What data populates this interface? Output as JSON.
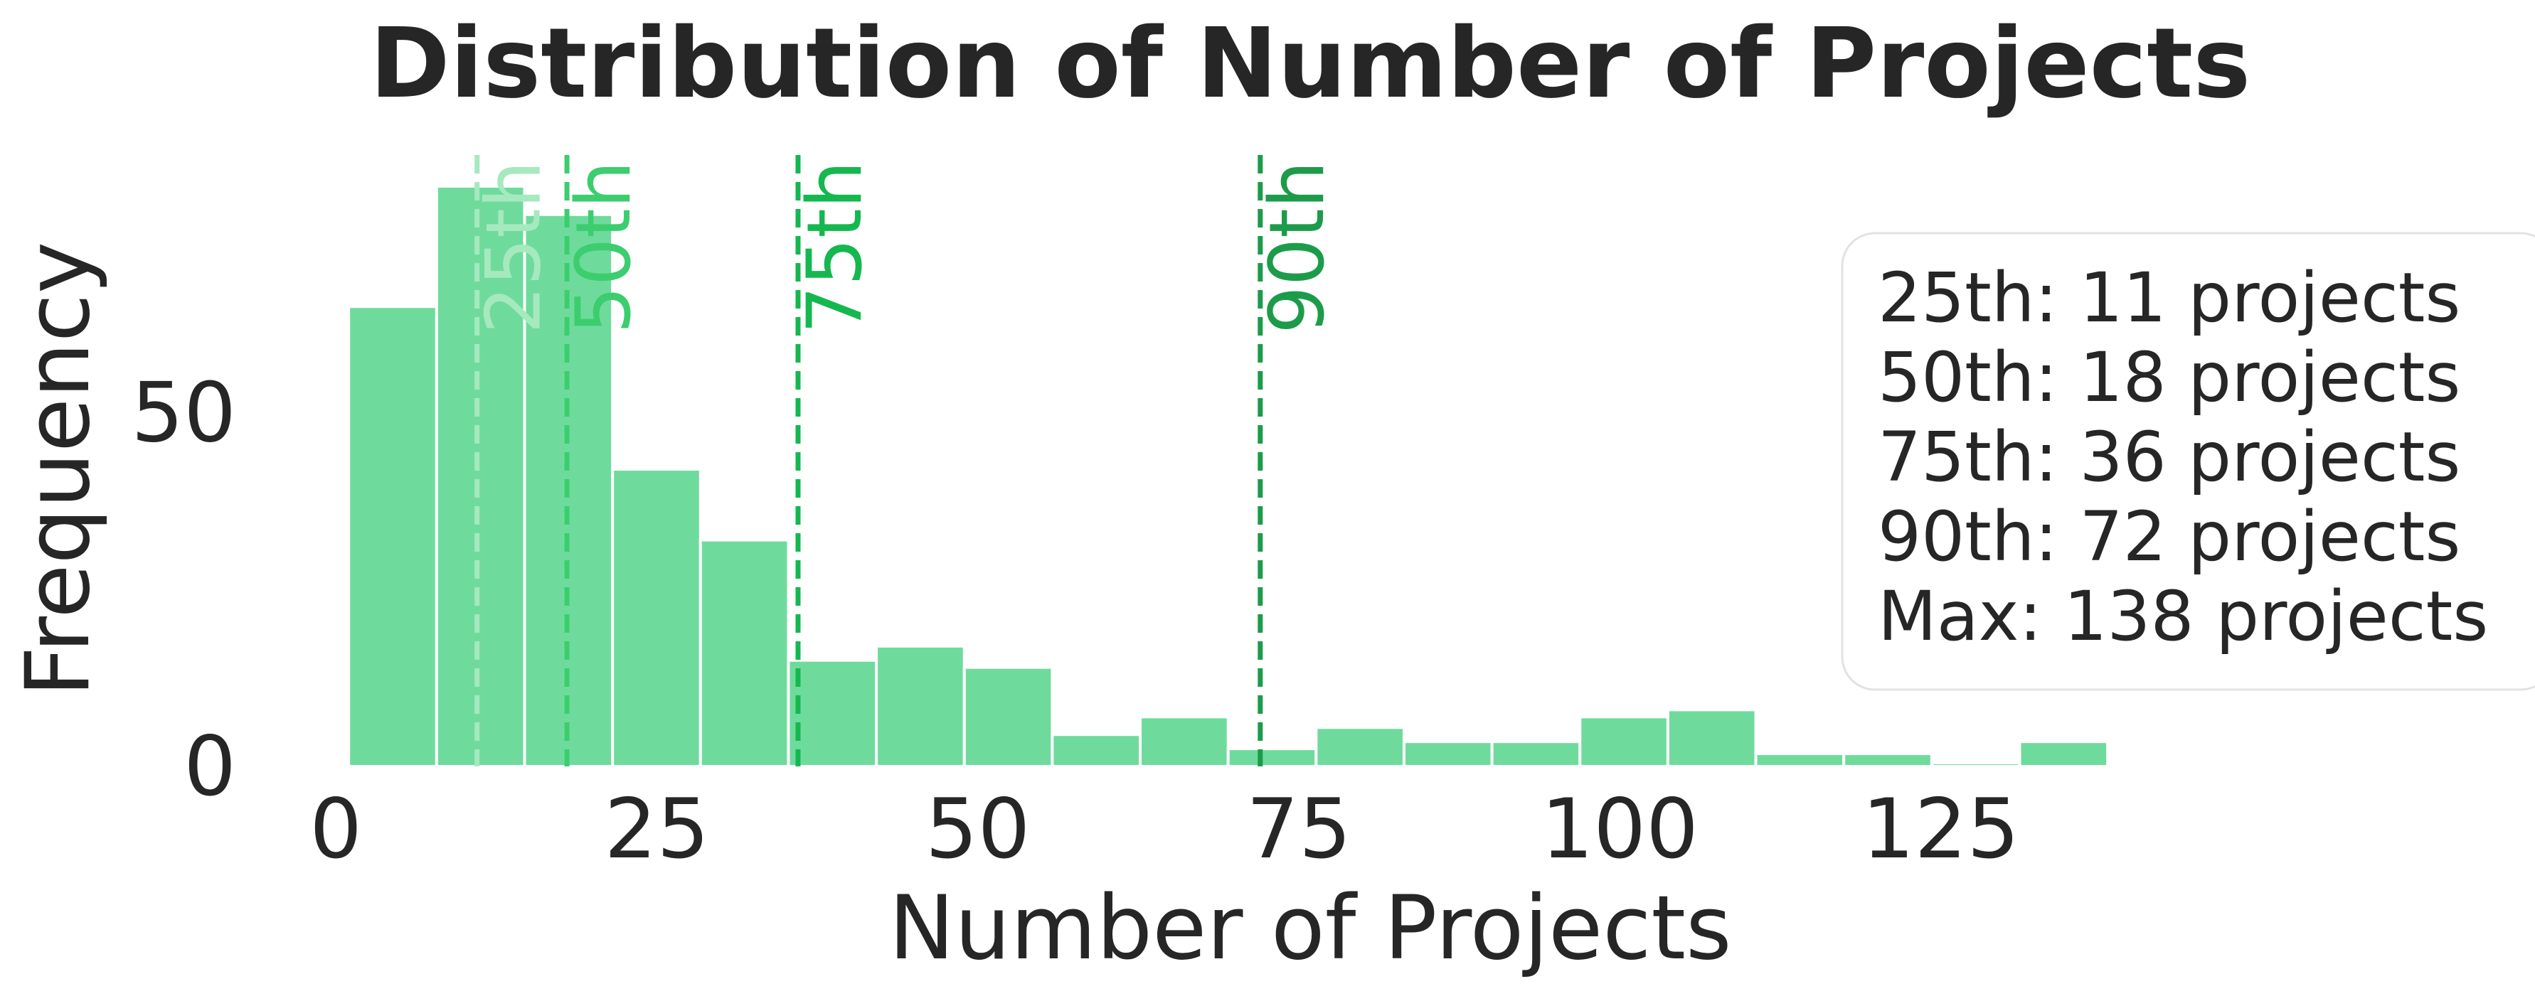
{
  "chart_data": {
    "type": "bar",
    "title": "Distribution of Number of Projects",
    "xlabel": "Number of Projects",
    "ylabel": "Frequency",
    "xlim": [
      -3,
      155
    ],
    "ylim": [
      0,
      82
    ],
    "x_ticks": [
      0,
      25,
      50,
      75,
      100,
      125
    ],
    "y_ticks": [
      0,
      50
    ],
    "grid": false,
    "bar_color": "#6edb9c",
    "bins": [
      {
        "start": 1.0,
        "end": 7.85,
        "value": 65
      },
      {
        "start": 7.85,
        "end": 14.7,
        "value": 82
      },
      {
        "start": 14.7,
        "end": 21.55,
        "value": 78
      },
      {
        "start": 21.55,
        "end": 28.4,
        "value": 42
      },
      {
        "start": 28.4,
        "end": 35.25,
        "value": 32
      },
      {
        "start": 35.25,
        "end": 42.1,
        "value": 15
      },
      {
        "start": 42.1,
        "end": 48.95,
        "value": 17
      },
      {
        "start": 48.95,
        "end": 55.8,
        "value": 14
      },
      {
        "start": 55.8,
        "end": 62.65,
        "value": 4.5
      },
      {
        "start": 62.65,
        "end": 69.5,
        "value": 7
      },
      {
        "start": 69.5,
        "end": 76.35,
        "value": 2.5
      },
      {
        "start": 76.35,
        "end": 83.2,
        "value": 5.5
      },
      {
        "start": 83.2,
        "end": 90.05,
        "value": 3.5
      },
      {
        "start": 90.05,
        "end": 96.9,
        "value": 3.5
      },
      {
        "start": 96.9,
        "end": 103.75,
        "value": 7
      },
      {
        "start": 103.75,
        "end": 110.6,
        "value": 8
      },
      {
        "start": 110.6,
        "end": 117.45,
        "value": 1.8
      },
      {
        "start": 117.45,
        "end": 124.3,
        "value": 1.8
      },
      {
        "start": 124.3,
        "end": 131.15,
        "value": 0.5
      },
      {
        "start": 131.15,
        "end": 138.0,
        "value": 3.5
      }
    ],
    "percentiles": [
      {
        "label": "25th",
        "value": 11,
        "color": "#a6e9bf"
      },
      {
        "label": "50th",
        "value": 18,
        "color": "#3ccd6f"
      },
      {
        "label": "75th",
        "value": 36,
        "color": "#14b84f"
      },
      {
        "label": "90th",
        "value": 72,
        "color": "#1c9c4a"
      }
    ],
    "legend_position": "right",
    "legend": [
      "25th: 11 projects",
      "50th: 18 projects",
      "75th: 36 projects",
      "90th: 72 projects",
      "Max: 138 projects"
    ]
  }
}
